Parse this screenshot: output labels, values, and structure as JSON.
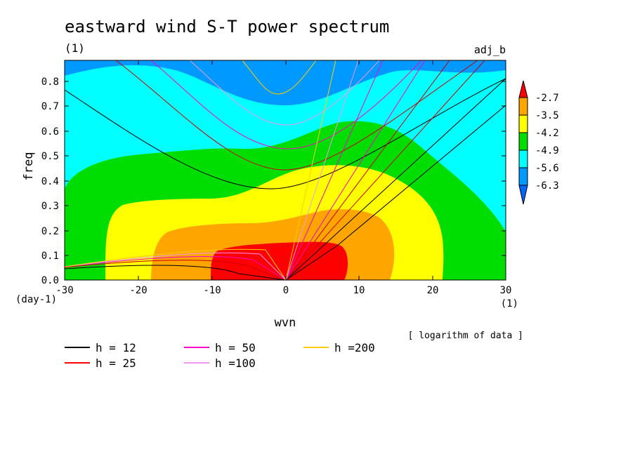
{
  "chart_data": {
    "type": "contour",
    "title": "eastward wind S-T power spectrum",
    "title_unit": "(1)",
    "tag": "adj_b",
    "xlabel": "wvn",
    "x_unit": "(1)",
    "ylabel": "freq",
    "y_unit": "(day-1)",
    "xlim": [
      -30,
      30
    ],
    "ylim": [
      0,
      0.88
    ],
    "x_ticks": [
      "-30",
      "-20",
      "-10",
      "0",
      "10",
      "20",
      "30"
    ],
    "y_ticks": [
      "0.0",
      "0.1",
      "0.2",
      "0.3",
      "0.4",
      "0.5",
      "0.6",
      "0.7",
      "0.8"
    ],
    "colorbar": {
      "levels": [
        "-2.7",
        "-3.5",
        "-4.2",
        "-4.9",
        "-5.6",
        "-6.3"
      ],
      "colors": [
        "#ff0000",
        "#ffa500",
        "#ffff00",
        "#00dd00",
        "#00ffff",
        "#0099ff",
        "#0066ff"
      ]
    },
    "note": "[ logarithm of data ]",
    "series": [
      {
        "name": "h = 12",
        "color": "#000000"
      },
      {
        "name": "h = 25",
        "color": "#ff0000"
      },
      {
        "name": "h = 50",
        "color": "#ff00cc"
      },
      {
        "name": "h =100",
        "color": "#ee99ee"
      },
      {
        "name": "h =200",
        "color": "#ffcc00"
      }
    ]
  }
}
